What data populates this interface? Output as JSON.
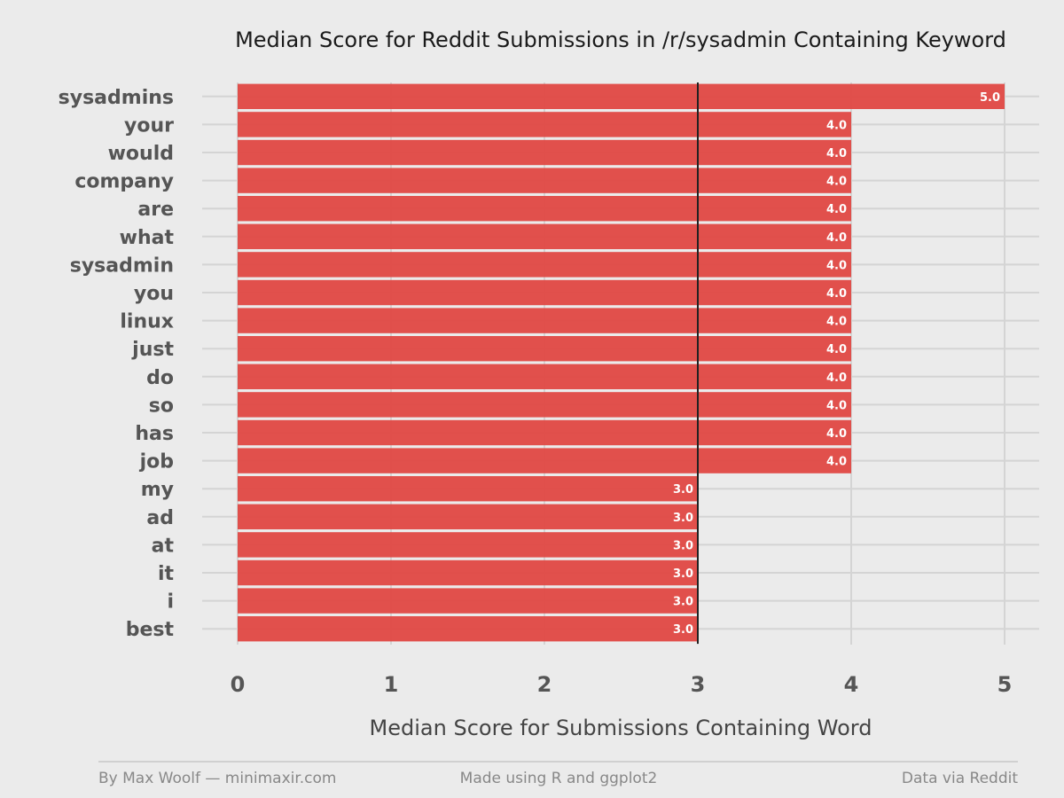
{
  "chart_data": {
    "type": "bar",
    "orientation": "horizontal",
    "title": "Median Score for Reddit Submissions in /r/sysadmin Containing Keyword",
    "xlabel": "Median Score for Submissions Containing Word",
    "ylabel": "",
    "xlim": [
      0,
      5
    ],
    "x_ticks": [
      "0",
      "1",
      "2",
      "3",
      "4",
      "5"
    ],
    "categories": [
      "sysadmins",
      "your",
      "would",
      "company",
      "are",
      "what",
      "sysadmin",
      "you",
      "linux",
      "just",
      "do",
      "so",
      "has",
      "job",
      "my",
      "ad",
      "at",
      "it",
      "i",
      "best"
    ],
    "values": [
      5.0,
      4.0,
      4.0,
      4.0,
      4.0,
      4.0,
      4.0,
      4.0,
      4.0,
      4.0,
      4.0,
      4.0,
      4.0,
      4.0,
      3.0,
      3.0,
      3.0,
      3.0,
      3.0,
      3.0
    ],
    "value_labels": [
      "5.0",
      "4.0",
      "4.0",
      "4.0",
      "4.0",
      "4.0",
      "4.0",
      "4.0",
      "4.0",
      "4.0",
      "4.0",
      "4.0",
      "4.0",
      "4.0",
      "3.0",
      "3.0",
      "3.0",
      "3.0",
      "3.0",
      "3.0"
    ],
    "reference_line": 3,
    "grid": true,
    "bar_color": "#e04a46",
    "background_color": "#ebebeb",
    "grid_color": "#d4d4d4"
  },
  "footer": {
    "left": "By Max Woolf — minimaxir.com",
    "center": "Made using R and ggplot2",
    "right": "Data via Reddit"
  }
}
